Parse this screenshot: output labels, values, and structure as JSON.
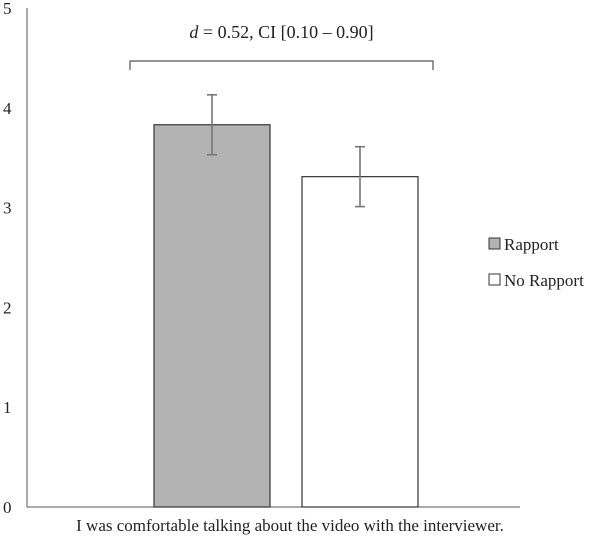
{
  "chart_data": {
    "type": "bar",
    "categories": [
      "I was comfortable talking about the video with the interviewer."
    ],
    "series": [
      {
        "name": "Rapport",
        "values": [
          3.83
        ],
        "error": [
          0.3
        ],
        "color": "#b3b3b3"
      },
      {
        "name": "No Rapport",
        "values": [
          3.31
        ],
        "error": [
          0.3
        ],
        "color": "#ffffff"
      }
    ],
    "ylim": [
      0,
      5
    ],
    "yticks": [
      "0",
      "1",
      "2",
      "3",
      "4",
      "5"
    ],
    "annotation": {
      "italic": "d",
      "text": " = 0.52, CI [0.10 – 0.90]"
    },
    "grid": false,
    "legend": "right"
  }
}
